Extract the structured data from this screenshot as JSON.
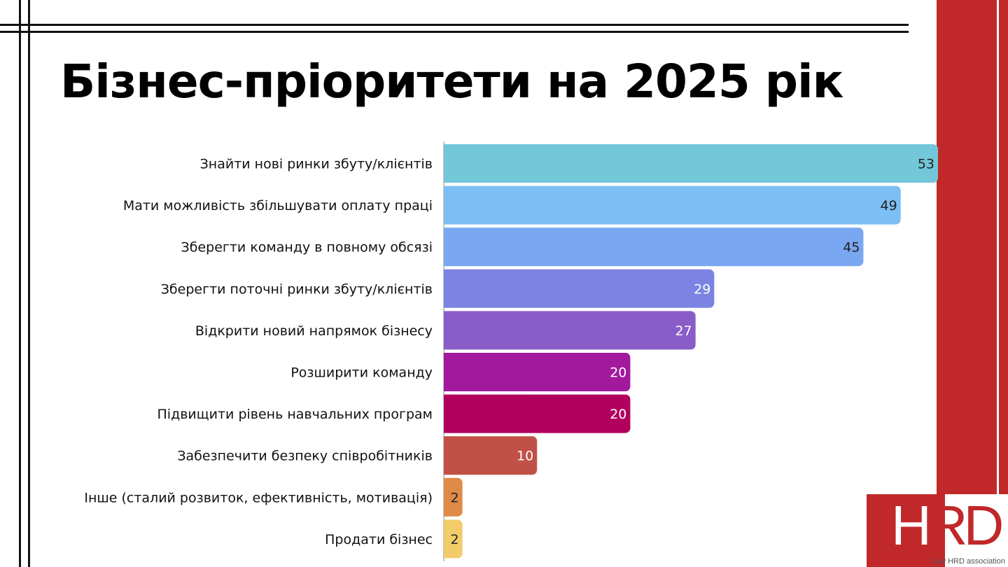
{
  "title": "Бізнес-пріоритети на 2025 рік",
  "logo": {
    "text_h": "H",
    "text_r": "R",
    "text_d": "D",
    "subtitle": "Lviv HRD association"
  },
  "colors": {
    "accent_red": "#c0282a"
  },
  "chart_data": {
    "type": "bar",
    "orientation": "horizontal",
    "categories": [
      "Знайти нові ринки збуту/клієнтів",
      "Мати можливість збільшувати оплату праці",
      "Зберегти команду в повному обсязі",
      "Зберегти поточні ринки збуту/клієнтів",
      "Відкрити новий напрямок бізнесу",
      "Розширити команду",
      "Підвищити рівень навчальних програм",
      "Забезпечити безпеку співробітників",
      "Інше (сталий розвиток, ефективність, мотивація)",
      "Продати бізнес"
    ],
    "values": [
      53,
      49,
      45,
      29,
      27,
      20,
      20,
      10,
      2,
      2
    ],
    "bar_colors": [
      "#72c8d9",
      "#7bbff5",
      "#7aa7f2",
      "#7b84e2",
      "#8a5cc8",
      "#a2199e",
      "#b2005e",
      "#c15146",
      "#e08a48",
      "#f2cc6a"
    ],
    "label_colors": [
      "#222222",
      "#222222",
      "#222222",
      "#ffffff",
      "#ffffff",
      "#ffffff",
      "#ffffff",
      "#ffffff",
      "#222222",
      "#222222"
    ],
    "xlim": [
      0,
      53
    ],
    "grid": false,
    "legend": "none"
  }
}
